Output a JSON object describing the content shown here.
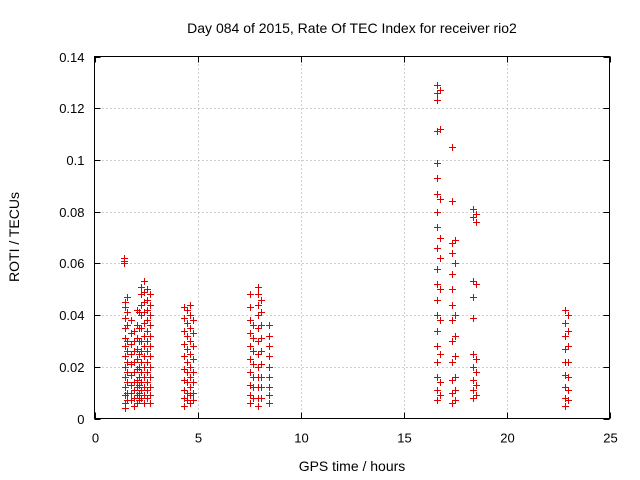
{
  "chart_data": {
    "type": "scatter",
    "title": "Day 084 of 2015, Rate Of TEC Index for receiver rio2",
    "xlabel": "GPS time / hours",
    "ylabel": "ROTI / TECUs",
    "xlim": [
      0,
      25
    ],
    "ylim": [
      0,
      0.14
    ],
    "xticks": [
      0,
      5,
      10,
      15,
      20,
      25
    ],
    "xtick_labels": [
      "0",
      "5",
      "10",
      "15",
      "20",
      "25"
    ],
    "yticks": [
      0,
      0.02,
      0.04,
      0.06,
      0.08,
      0.1,
      0.12,
      0.14
    ],
    "ytick_labels": [
      "0",
      "0.02",
      "0.04",
      "0.06",
      "0.08",
      "0.1",
      "0.12",
      "0.14"
    ],
    "grid": true,
    "marker": "+",
    "color": "#e00000",
    "series": [
      {
        "name": "rio2",
        "points": [
          [
            1.45,
            0.062
          ],
          [
            1.45,
            0.061
          ],
          [
            1.45,
            0.06
          ],
          [
            1.5,
            0.045
          ],
          [
            1.5,
            0.043
          ],
          [
            1.5,
            0.039
          ],
          [
            1.5,
            0.035
          ],
          [
            1.5,
            0.031
          ],
          [
            1.5,
            0.028
          ],
          [
            1.5,
            0.024
          ],
          [
            1.5,
            0.02
          ],
          [
            1.5,
            0.016
          ],
          [
            1.5,
            0.012
          ],
          [
            1.5,
            0.009
          ],
          [
            1.5,
            0.006
          ],
          [
            1.5,
            0.004
          ],
          [
            1.6,
            0.047
          ],
          [
            1.6,
            0.041
          ],
          [
            1.6,
            0.036
          ],
          [
            1.6,
            0.03
          ],
          [
            1.6,
            0.026
          ],
          [
            1.6,
            0.022
          ],
          [
            1.6,
            0.018
          ],
          [
            1.6,
            0.014
          ],
          [
            1.6,
            0.01
          ],
          [
            1.6,
            0.007
          ],
          [
            1.75,
            0.038
          ],
          [
            1.75,
            0.033
          ],
          [
            1.75,
            0.029
          ],
          [
            1.75,
            0.025
          ],
          [
            1.75,
            0.021
          ],
          [
            1.75,
            0.017
          ],
          [
            1.75,
            0.013
          ],
          [
            1.75,
            0.01
          ],
          [
            1.75,
            0.007
          ],
          [
            1.9,
            0.034
          ],
          [
            1.9,
            0.03
          ],
          [
            1.9,
            0.026
          ],
          [
            1.9,
            0.022
          ],
          [
            1.9,
            0.018
          ],
          [
            1.9,
            0.014
          ],
          [
            1.9,
            0.011
          ],
          [
            1.9,
            0.008
          ],
          [
            1.9,
            0.005
          ],
          [
            2.05,
            0.042
          ],
          [
            2.05,
            0.036
          ],
          [
            2.05,
            0.031
          ],
          [
            2.05,
            0.027
          ],
          [
            2.05,
            0.023
          ],
          [
            2.05,
            0.019
          ],
          [
            2.05,
            0.015
          ],
          [
            2.05,
            0.012
          ],
          [
            2.05,
            0.009
          ],
          [
            2.05,
            0.006
          ],
          [
            2.15,
            0.041
          ],
          [
            2.15,
            0.035
          ],
          [
            2.15,
            0.03
          ],
          [
            2.15,
            0.025
          ],
          [
            2.15,
            0.02
          ],
          [
            2.15,
            0.016
          ],
          [
            2.15,
            0.013
          ],
          [
            2.15,
            0.01
          ],
          [
            2.15,
            0.007
          ],
          [
            2.25,
            0.051
          ],
          [
            2.25,
            0.048
          ],
          [
            2.25,
            0.044
          ],
          [
            2.25,
            0.04
          ],
          [
            2.25,
            0.035
          ],
          [
            2.25,
            0.03
          ],
          [
            2.25,
            0.026
          ],
          [
            2.25,
            0.022
          ],
          [
            2.25,
            0.018
          ],
          [
            2.25,
            0.014
          ],
          [
            2.25,
            0.011
          ],
          [
            2.25,
            0.008
          ],
          [
            2.4,
            0.053
          ],
          [
            2.4,
            0.049
          ],
          [
            2.4,
            0.045
          ],
          [
            2.4,
            0.041
          ],
          [
            2.4,
            0.037
          ],
          [
            2.4,
            0.032
          ],
          [
            2.4,
            0.028
          ],
          [
            2.4,
            0.024
          ],
          [
            2.4,
            0.02
          ],
          [
            2.4,
            0.016
          ],
          [
            2.4,
            0.012
          ],
          [
            2.4,
            0.009
          ],
          [
            2.4,
            0.006
          ],
          [
            2.55,
            0.05
          ],
          [
            2.55,
            0.046
          ],
          [
            2.55,
            0.042
          ],
          [
            2.55,
            0.038
          ],
          [
            2.55,
            0.034
          ],
          [
            2.55,
            0.03
          ],
          [
            2.55,
            0.026
          ],
          [
            2.55,
            0.022
          ],
          [
            2.55,
            0.018
          ],
          [
            2.55,
            0.014
          ],
          [
            2.55,
            0.011
          ],
          [
            2.55,
            0.008
          ],
          [
            2.7,
            0.048
          ],
          [
            2.7,
            0.044
          ],
          [
            2.7,
            0.04
          ],
          [
            2.7,
            0.036
          ],
          [
            2.7,
            0.032
          ],
          [
            2.7,
            0.028
          ],
          [
            2.7,
            0.024
          ],
          [
            2.7,
            0.02
          ],
          [
            2.7,
            0.016
          ],
          [
            2.7,
            0.012
          ],
          [
            2.7,
            0.009
          ],
          [
            2.7,
            0.006
          ],
          [
            4.35,
            0.043
          ],
          [
            4.35,
            0.039
          ],
          [
            4.35,
            0.034
          ],
          [
            4.35,
            0.029
          ],
          [
            4.35,
            0.024
          ],
          [
            4.35,
            0.019
          ],
          [
            4.35,
            0.015
          ],
          [
            4.35,
            0.011
          ],
          [
            4.35,
            0.008
          ],
          [
            4.35,
            0.005
          ],
          [
            4.5,
            0.042
          ],
          [
            4.5,
            0.037
          ],
          [
            4.5,
            0.032
          ],
          [
            4.5,
            0.027
          ],
          [
            4.5,
            0.022
          ],
          [
            4.5,
            0.018
          ],
          [
            4.5,
            0.014
          ],
          [
            4.5,
            0.01
          ],
          [
            4.5,
            0.007
          ],
          [
            4.65,
            0.044
          ],
          [
            4.65,
            0.04
          ],
          [
            4.65,
            0.035
          ],
          [
            4.65,
            0.03
          ],
          [
            4.65,
            0.025
          ],
          [
            4.65,
            0.02
          ],
          [
            4.65,
            0.016
          ],
          [
            4.65,
            0.012
          ],
          [
            4.65,
            0.009
          ],
          [
            4.65,
            0.006
          ],
          [
            4.8,
            0.038
          ],
          [
            4.8,
            0.033
          ],
          [
            4.8,
            0.028
          ],
          [
            4.8,
            0.023
          ],
          [
            4.8,
            0.018
          ],
          [
            4.8,
            0.014
          ],
          [
            4.8,
            0.01
          ],
          [
            4.8,
            0.007
          ],
          [
            7.55,
            0.048
          ],
          [
            7.55,
            0.043
          ],
          [
            7.55,
            0.038
          ],
          [
            7.55,
            0.033
          ],
          [
            7.55,
            0.028
          ],
          [
            7.55,
            0.023
          ],
          [
            7.55,
            0.018
          ],
          [
            7.55,
            0.013
          ],
          [
            7.55,
            0.009
          ],
          [
            7.55,
            0.006
          ],
          [
            7.7,
            0.036
          ],
          [
            7.7,
            0.031
          ],
          [
            7.7,
            0.026
          ],
          [
            7.7,
            0.021
          ],
          [
            7.7,
            0.016
          ],
          [
            7.7,
            0.012
          ],
          [
            7.7,
            0.008
          ],
          [
            7.95,
            0.051
          ],
          [
            7.95,
            0.048
          ],
          [
            7.95,
            0.044
          ],
          [
            7.95,
            0.04
          ],
          [
            7.95,
            0.035
          ],
          [
            7.95,
            0.03
          ],
          [
            7.95,
            0.025
          ],
          [
            7.95,
            0.02
          ],
          [
            7.95,
            0.016
          ],
          [
            7.95,
            0.012
          ],
          [
            7.95,
            0.008
          ],
          [
            7.95,
            0.005
          ],
          [
            8.1,
            0.046
          ],
          [
            8.1,
            0.041
          ],
          [
            8.1,
            0.036
          ],
          [
            8.1,
            0.031
          ],
          [
            8.1,
            0.026
          ],
          [
            8.1,
            0.021
          ],
          [
            8.1,
            0.016
          ],
          [
            8.1,
            0.012
          ],
          [
            8.1,
            0.008
          ],
          [
            8.45,
            0.036
          ],
          [
            8.45,
            0.032
          ],
          [
            8.45,
            0.028
          ],
          [
            8.45,
            0.024
          ],
          [
            8.45,
            0.02
          ],
          [
            8.45,
            0.016
          ],
          [
            8.45,
            0.012
          ],
          [
            8.45,
            0.009
          ],
          [
            8.45,
            0.006
          ],
          [
            16.65,
            0.129
          ],
          [
            16.65,
            0.126
          ],
          [
            16.65,
            0.123
          ],
          [
            16.65,
            0.111
          ],
          [
            16.65,
            0.099
          ],
          [
            16.65,
            0.093
          ],
          [
            16.65,
            0.087
          ],
          [
            16.65,
            0.08
          ],
          [
            16.65,
            0.074
          ],
          [
            16.65,
            0.066
          ],
          [
            16.65,
            0.058
          ],
          [
            16.65,
            0.052
          ],
          [
            16.65,
            0.046
          ],
          [
            16.65,
            0.04
          ],
          [
            16.65,
            0.034
          ],
          [
            16.65,
            0.028
          ],
          [
            16.65,
            0.022
          ],
          [
            16.65,
            0.016
          ],
          [
            16.65,
            0.011
          ],
          [
            16.65,
            0.007
          ],
          [
            16.75,
            0.127
          ],
          [
            16.75,
            0.112
          ],
          [
            16.75,
            0.085
          ],
          [
            16.75,
            0.07
          ],
          [
            16.75,
            0.062
          ],
          [
            16.75,
            0.05
          ],
          [
            16.75,
            0.038
          ],
          [
            16.75,
            0.025
          ],
          [
            16.75,
            0.014
          ],
          [
            16.75,
            0.009
          ],
          [
            17.35,
            0.105
          ],
          [
            17.35,
            0.084
          ],
          [
            17.35,
            0.068
          ],
          [
            17.35,
            0.064
          ],
          [
            17.35,
            0.056
          ],
          [
            17.35,
            0.05
          ],
          [
            17.35,
            0.044
          ],
          [
            17.35,
            0.038
          ],
          [
            17.35,
            0.03
          ],
          [
            17.35,
            0.022
          ],
          [
            17.35,
            0.015
          ],
          [
            17.35,
            0.01
          ],
          [
            17.35,
            0.006
          ],
          [
            17.5,
            0.069
          ],
          [
            17.5,
            0.06
          ],
          [
            17.5,
            0.04
          ],
          [
            17.5,
            0.032
          ],
          [
            17.5,
            0.024
          ],
          [
            17.5,
            0.016
          ],
          [
            17.5,
            0.011
          ],
          [
            17.5,
            0.007
          ],
          [
            18.35,
            0.081
          ],
          [
            18.35,
            0.078
          ],
          [
            18.35,
            0.053
          ],
          [
            18.35,
            0.047
          ],
          [
            18.35,
            0.039
          ],
          [
            18.35,
            0.025
          ],
          [
            18.35,
            0.02
          ],
          [
            18.35,
            0.015
          ],
          [
            18.35,
            0.011
          ],
          [
            18.35,
            0.008
          ],
          [
            18.5,
            0.079
          ],
          [
            18.5,
            0.076
          ],
          [
            18.5,
            0.052
          ],
          [
            18.5,
            0.023
          ],
          [
            18.5,
            0.018
          ],
          [
            18.5,
            0.013
          ],
          [
            18.5,
            0.009
          ],
          [
            22.85,
            0.042
          ],
          [
            22.85,
            0.037
          ],
          [
            22.85,
            0.032
          ],
          [
            22.85,
            0.027
          ],
          [
            22.85,
            0.022
          ],
          [
            22.85,
            0.017
          ],
          [
            22.85,
            0.012
          ],
          [
            22.85,
            0.008
          ],
          [
            22.85,
            0.005
          ],
          [
            23.0,
            0.04
          ],
          [
            23.0,
            0.034
          ],
          [
            23.0,
            0.028
          ],
          [
            23.0,
            0.022
          ],
          [
            23.0,
            0.016
          ],
          [
            23.0,
            0.011
          ],
          [
            23.0,
            0.007
          ]
        ]
      }
    ]
  }
}
